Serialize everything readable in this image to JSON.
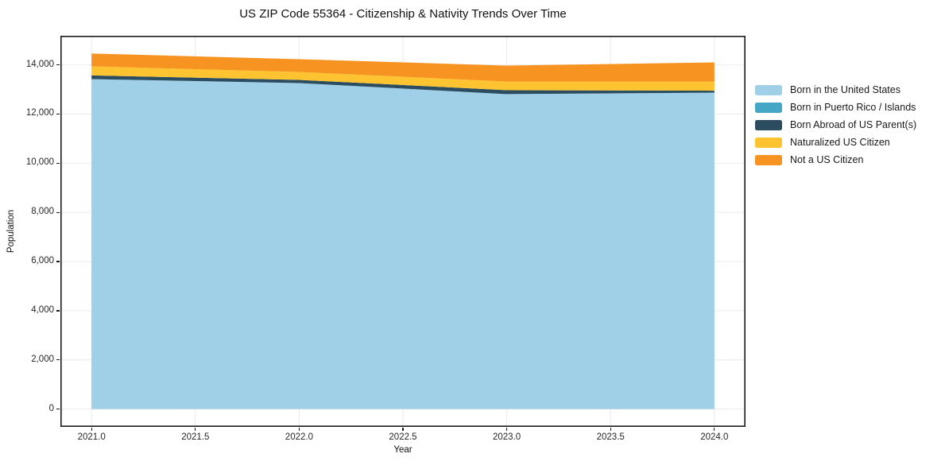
{
  "chart_data": {
    "type": "area",
    "stacked": true,
    "title": "US ZIP Code 55364 - Citizenship & Nativity Trends Over Time",
    "xlabel": "Year",
    "ylabel": "Population",
    "x": [
      2021,
      2022,
      2023,
      2024
    ],
    "series": [
      {
        "name": "Born in the United States",
        "color": "#9fd0e8",
        "values": [
          13420,
          13260,
          12810,
          12870
        ]
      },
      {
        "name": "Born in Puerto Rico / Islands",
        "color": "#45a6c5",
        "values": [
          0,
          0,
          0,
          0
        ]
      },
      {
        "name": "Born Abroad of US Parent(s)",
        "color": "#2b4d5f",
        "values": [
          150,
          130,
          160,
          80
        ]
      },
      {
        "name": "Naturalized US Citizen",
        "color": "#fdc330",
        "values": [
          370,
          320,
          350,
          370
        ]
      },
      {
        "name": "Not a US Citizen",
        "color": "#f79320",
        "values": [
          520,
          520,
          650,
          780
        ]
      }
    ],
    "xlim": [
      2020.85,
      2024.15
    ],
    "ylim": [
      -723,
      15183
    ],
    "xticks": [
      {
        "v": 2021.0,
        "label": "2021.0"
      },
      {
        "v": 2021.5,
        "label": "2021.5"
      },
      {
        "v": 2022.0,
        "label": "2022.0"
      },
      {
        "v": 2022.5,
        "label": "2022.5"
      },
      {
        "v": 2023.0,
        "label": "2023.0"
      },
      {
        "v": 2023.5,
        "label": "2023.5"
      },
      {
        "v": 2024.0,
        "label": "2024.0"
      }
    ],
    "yticks": [
      {
        "v": 0,
        "label": "0"
      },
      {
        "v": 2000,
        "label": "2,000"
      },
      {
        "v": 4000,
        "label": "4,000"
      },
      {
        "v": 6000,
        "label": "6,000"
      },
      {
        "v": 8000,
        "label": "8,000"
      },
      {
        "v": 10000,
        "label": "10,000"
      },
      {
        "v": 12000,
        "label": "12,000"
      },
      {
        "v": 14000,
        "label": "14,000"
      }
    ],
    "grid": true,
    "grid_color": "#ebebeb",
    "border_color": "#1a1a1a",
    "background_color": "#ffffff",
    "legend_position": "right-outside"
  }
}
